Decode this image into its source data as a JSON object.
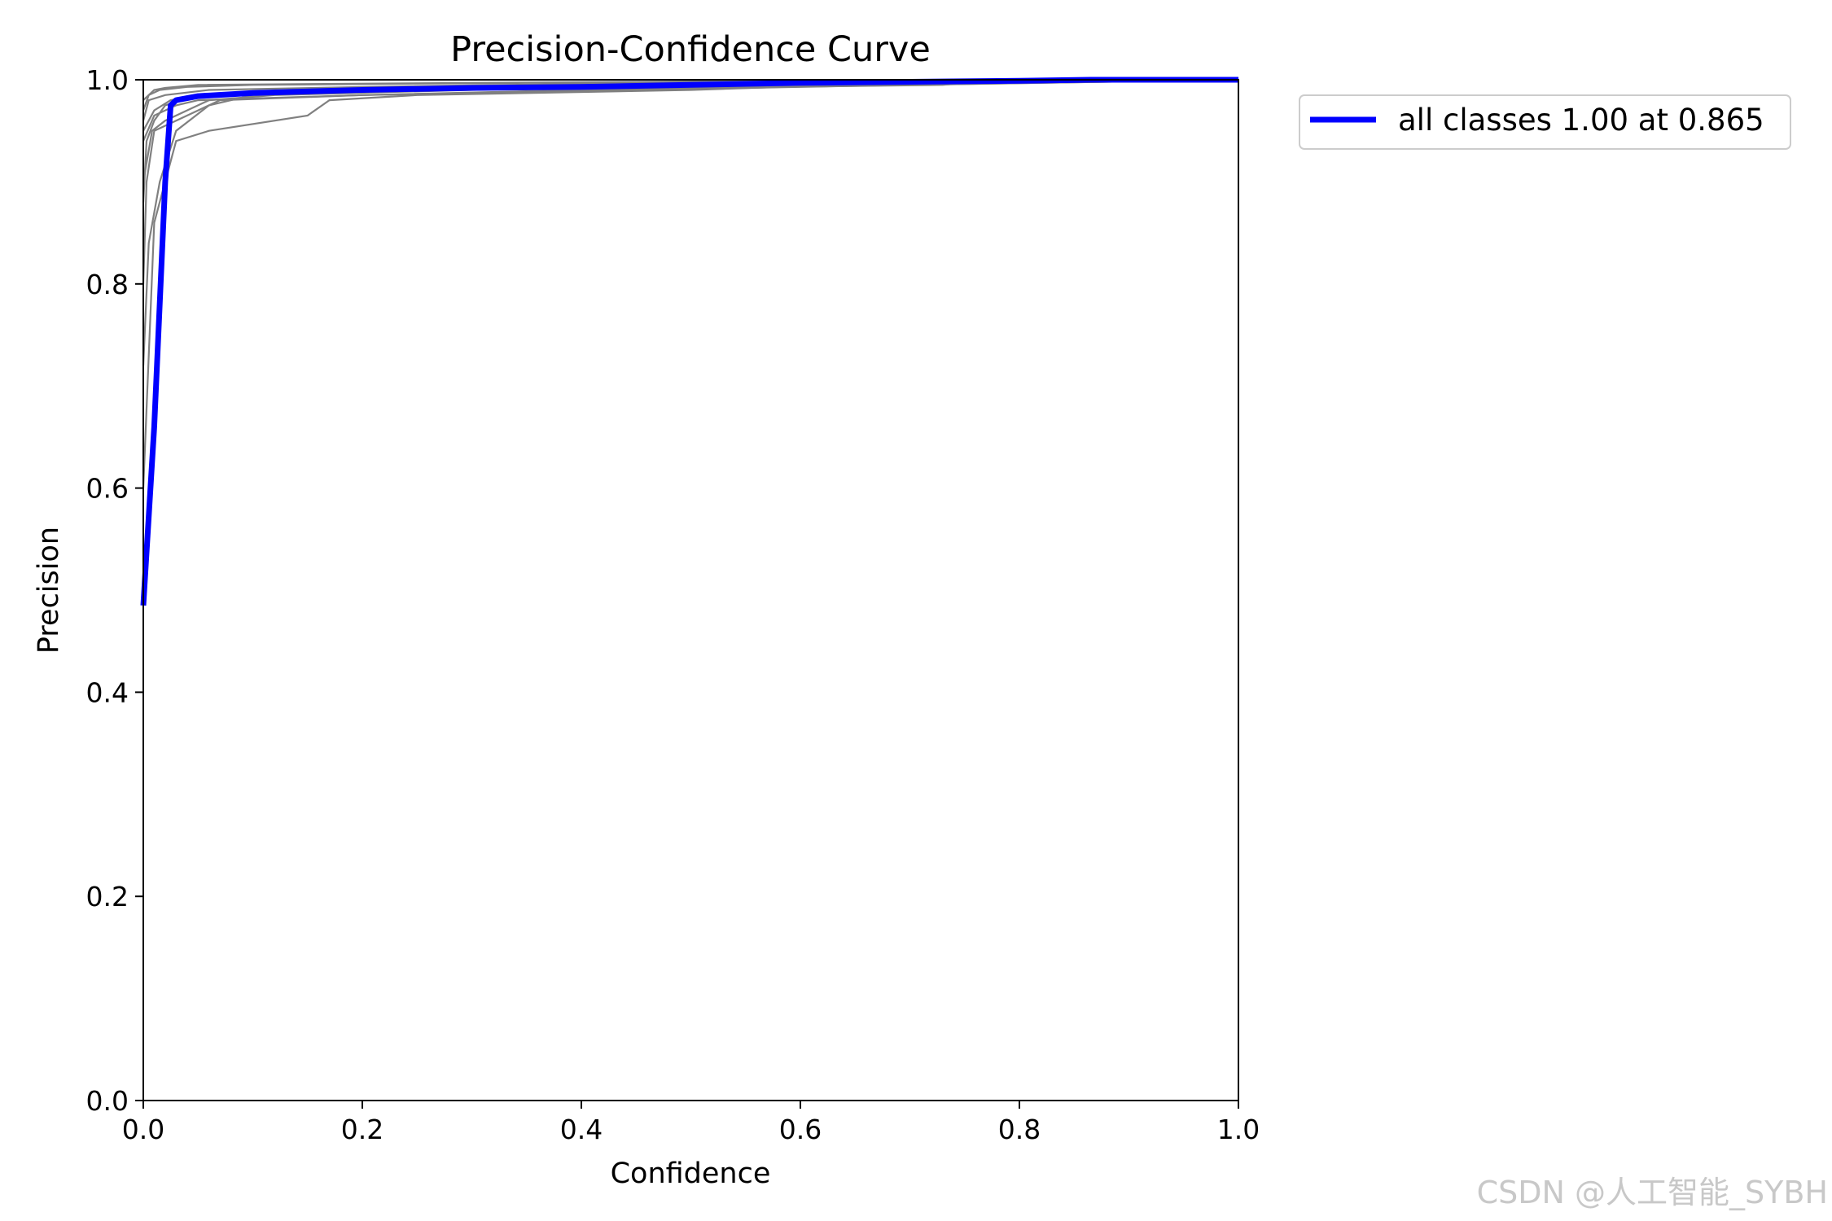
{
  "chart_data": {
    "type": "line",
    "title": "Precision-Confidence Curve",
    "xlabel": "Confidence",
    "ylabel": "Precision",
    "xlim": [
      0.0,
      1.0
    ],
    "ylim": [
      0.0,
      1.0
    ],
    "xticks": [
      "0.0",
      "0.2",
      "0.4",
      "0.6",
      "0.8",
      "1.0"
    ],
    "yticks": [
      "0.0",
      "0.2",
      "0.4",
      "0.6",
      "0.8",
      "1.0"
    ],
    "grid": false,
    "legend_position": "outside-top-right",
    "class_series_color": "#808080",
    "class_series": [
      {
        "x": [
          0.0,
          0.003,
          0.01,
          0.02,
          0.05,
          0.15,
          0.4,
          0.7,
          1.0
        ],
        "y": [
          0.88,
          0.94,
          0.96,
          0.975,
          0.985,
          0.99,
          0.995,
          0.998,
          1.0
        ]
      },
      {
        "x": [
          0.0,
          0.005,
          0.015,
          0.03,
          0.06,
          0.1,
          0.3,
          0.6,
          1.0
        ],
        "y": [
          0.72,
          0.84,
          0.9,
          0.95,
          0.975,
          0.985,
          0.992,
          0.997,
          1.0
        ]
      },
      {
        "x": [
          0.0,
          0.01,
          0.03,
          0.06,
          0.15,
          0.17,
          0.25,
          0.5,
          0.78,
          1.0
        ],
        "y": [
          0.6,
          0.86,
          0.94,
          0.95,
          0.965,
          0.98,
          0.985,
          0.99,
          1.0,
          1.0
        ]
      },
      {
        "x": [
          0.0,
          0.01,
          0.03,
          0.05,
          0.2,
          0.45,
          0.7,
          1.0
        ],
        "y": [
          0.94,
          0.965,
          0.975,
          0.98,
          0.985,
          0.99,
          0.995,
          1.0
        ]
      },
      {
        "x": [
          0.0,
          0.008,
          0.02,
          0.04,
          0.06,
          0.12,
          0.3,
          0.55,
          0.75,
          1.0
        ],
        "y": [
          0.9,
          0.95,
          0.96,
          0.97,
          0.98,
          0.985,
          0.99,
          0.995,
          0.998,
          1.0
        ]
      },
      {
        "x": [
          0.0,
          0.01,
          0.025,
          0.05,
          0.25,
          0.5,
          0.73,
          0.78,
          1.0
        ],
        "y": [
          0.95,
          0.97,
          0.98,
          0.985,
          0.99,
          0.992,
          0.995,
          1.0,
          1.0
        ]
      },
      {
        "x": [
          0.0,
          0.005,
          0.02,
          0.06,
          0.2,
          0.4,
          0.65,
          1.0
        ],
        "y": [
          0.96,
          0.98,
          0.985,
          0.99,
          0.993,
          0.996,
          0.999,
          1.0
        ]
      },
      {
        "x": [
          0.0,
          0.005,
          0.015,
          0.04,
          0.1,
          0.35,
          0.6,
          1.0
        ],
        "y": [
          0.97,
          0.985,
          0.99,
          0.993,
          0.995,
          0.997,
          0.999,
          1.0
        ]
      },
      {
        "x": [
          0.0,
          0.003,
          0.01,
          0.03,
          0.05,
          0.07,
          0.2,
          0.4,
          1.0
        ],
        "y": [
          0.8,
          0.9,
          0.95,
          0.96,
          0.97,
          0.98,
          0.985,
          0.99,
          1.0
        ]
      },
      {
        "x": [
          0.0,
          0.01,
          0.02,
          0.05,
          0.3,
          0.6,
          1.0
        ],
        "y": [
          0.98,
          0.99,
          0.992,
          0.995,
          0.997,
          0.999,
          1.0
        ]
      }
    ],
    "series": [
      {
        "name": "all classes 1.00 at 0.865",
        "color": "#0000ff",
        "x": [
          0.0,
          0.01,
          0.02,
          0.025,
          0.03,
          0.05,
          0.1,
          0.2,
          0.3,
          0.4,
          0.5,
          0.6,
          0.7,
          0.8,
          0.865,
          1.0
        ],
        "y": [
          0.485,
          0.66,
          0.9,
          0.975,
          0.98,
          0.984,
          0.987,
          0.99,
          0.992,
          0.993,
          0.995,
          0.997,
          0.998,
          0.999,
          1.0,
          1.0
        ]
      }
    ]
  },
  "watermark": "CSDN @人工智能_SYBH"
}
